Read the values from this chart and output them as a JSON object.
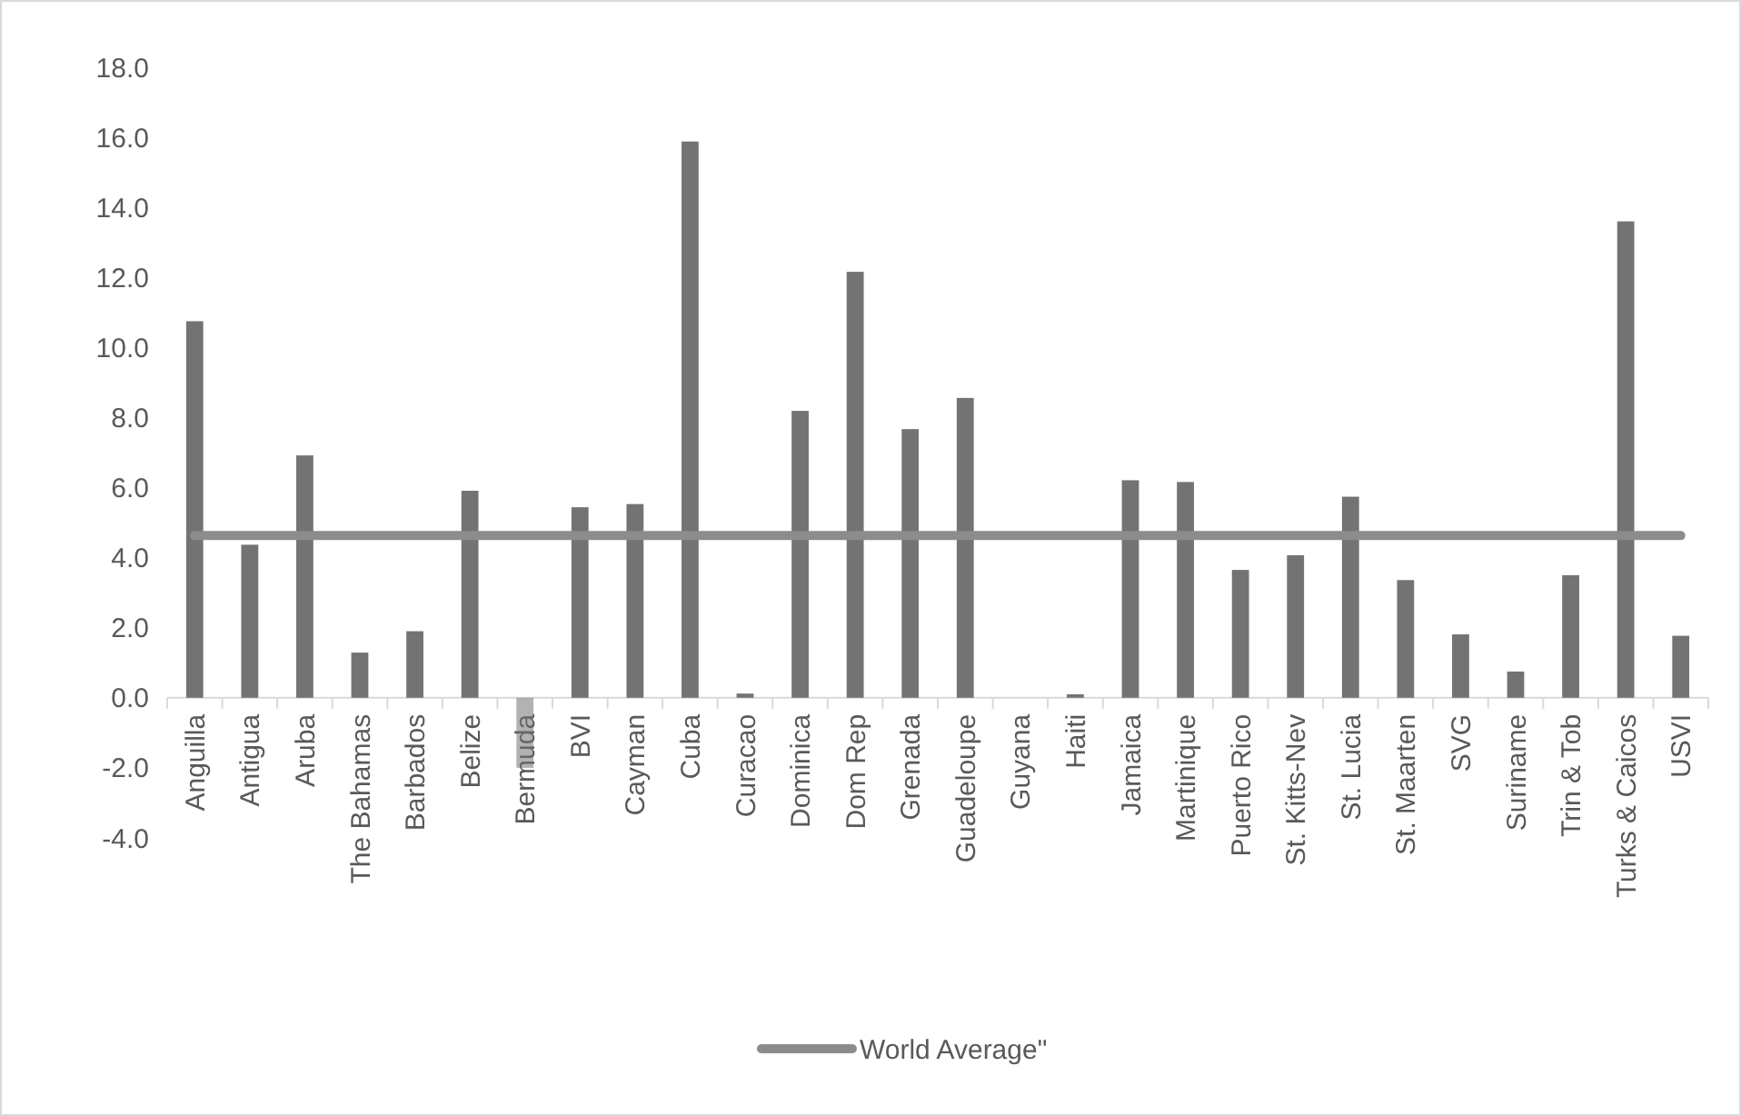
{
  "chart_data": {
    "type": "bar",
    "categories": [
      "Anguilla",
      "Antigua",
      "Aruba",
      "The Bahamas",
      "Barbados",
      "Belize",
      "Bermuda",
      "BVI",
      "Cayman",
      "Cuba",
      "Curacao",
      "Dominica",
      "Dom Rep",
      "Grenada",
      "Guadeloupe",
      "Guyana",
      "Haiti",
      "Jamaica",
      "Martinique",
      "Puerto Rico",
      "St. Kitts-Nev",
      "St. Lucia",
      "St. Maarten",
      "SVG",
      "Suriname",
      "Trin & Tob",
      "Turks & Caicos",
      "USVI"
    ],
    "series": [
      {
        "color": "#737373",
        "values": [
          10.75,
          4.37,
          6.92,
          1.29,
          1.9,
          5.91,
          -2.0,
          5.44,
          5.53,
          15.88,
          0.12,
          8.19,
          12.16,
          7.67,
          8.56,
          0,
          0.1,
          6.21,
          6.16,
          3.65,
          4.07,
          5.74,
          3.36,
          1.81,
          0.75,
          3.5,
          13.6,
          1.77
        ]
      },
      {
        "type": "line",
        "name": "World Average\"",
        "color": "#8c8c8c",
        "marker": "none",
        "values": [
          4.63,
          4.63,
          4.63,
          4.63,
          4.63,
          4.63,
          4.63,
          4.63,
          4.63,
          4.63,
          4.63,
          4.63,
          4.63,
          4.63,
          4.63,
          4.63,
          4.63,
          4.63,
          4.63,
          4.63,
          4.63,
          4.63,
          4.63,
          4.63,
          4.63,
          4.63,
          4.63,
          4.63
        ]
      }
    ],
    "ylim": [
      -4,
      18
    ],
    "yticks": [
      {
        "value": -4,
        "label": "-4.0"
      },
      {
        "value": -2,
        "label": "-2.0"
      },
      {
        "value": 0,
        "label": "0.0"
      },
      {
        "value": 2,
        "label": "2.0"
      },
      {
        "value": 4,
        "label": "4.0"
      },
      {
        "value": 6,
        "label": "6.0"
      },
      {
        "value": 8,
        "label": "8.0"
      },
      {
        "value": 10,
        "label": "10.0"
      },
      {
        "value": 12,
        "label": "12.0"
      },
      {
        "value": 14,
        "label": "14.0"
      },
      {
        "value": 16,
        "label": "16.0"
      },
      {
        "value": 18,
        "label": "18.0"
      }
    ],
    "grid": false,
    "legend": "bottom"
  }
}
